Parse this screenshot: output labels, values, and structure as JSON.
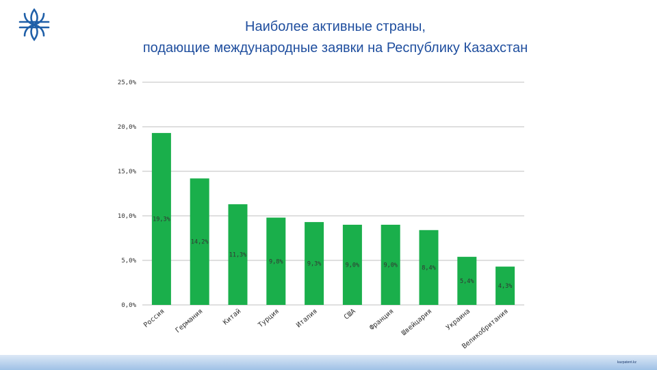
{
  "header": {
    "title_line1": "Наиболее активные страны,",
    "title_line2": "подающие международные заявки  на Республику Казахстан"
  },
  "logo": {
    "icon": "kazpatent-logo-icon",
    "color": "#1f5fa8"
  },
  "colors": {
    "bar": "#1aaf4b",
    "grid": "#bfbfbf",
    "title": "#1f4e9e"
  },
  "chart_data": {
    "type": "bar",
    "categories": [
      "Россия",
      "Германия",
      "Китай",
      "Турция",
      "Италия",
      "США",
      "Франция",
      "Швейцария",
      "Украина",
      "Великобритания"
    ],
    "values": [
      19.3,
      14.2,
      11.3,
      9.8,
      9.3,
      9.0,
      9.0,
      8.4,
      5.4,
      4.3
    ],
    "data_labels": [
      "19,3%",
      "14,2%",
      "11,3%",
      "9,8%",
      "9,3%",
      "9,0%",
      "9,0%",
      "8,4%",
      "5,4%",
      "4,3%"
    ],
    "y_ticks": [
      "0,0%",
      "5,0%",
      "10,0%",
      "15,0%",
      "20,0%",
      "25,0%"
    ],
    "ylim": [
      0,
      25
    ],
    "grid": true,
    "legend": "none"
  },
  "footer": {
    "text": "kazpatent.kz"
  }
}
